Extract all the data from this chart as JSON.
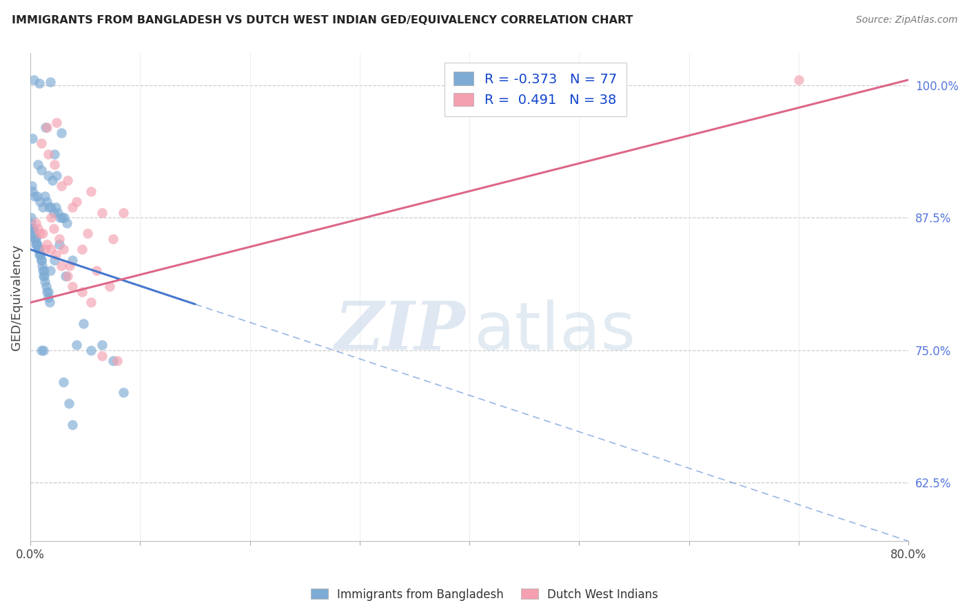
{
  "title": "IMMIGRANTS FROM BANGLADESH VS DUTCH WEST INDIAN GED/EQUIVALENCY CORRELATION CHART",
  "source": "Source: ZipAtlas.com",
  "ylabel": "GED/Equivalency",
  "ylabel_right_ticks": [
    62.5,
    75.0,
    87.5,
    100.0
  ],
  "ylabel_right_labels": [
    "62.5%",
    "75.0%",
    "87.5%",
    "100.0%"
  ],
  "xlim": [
    0.0,
    80.0
  ],
  "ylim": [
    57.0,
    103.0
  ],
  "blue_R": -0.373,
  "blue_N": 77,
  "pink_R": 0.491,
  "pink_N": 38,
  "blue_color": "#7eabd4",
  "pink_color": "#f4a0b0",
  "blue_line_color": "#4477cc",
  "pink_line_color": "#dd6688",
  "legend_label_blue": "Immigrants from Bangladesh",
  "legend_label_pink": "Dutch West Indians",
  "watermark_zip": "ZIP",
  "watermark_atlas": "atlas",
  "blue_scatter_x": [
    0.3,
    0.8,
    1.8,
    1.4,
    2.2,
    2.8,
    0.2,
    0.7,
    1.0,
    1.6,
    2.0,
    2.4,
    0.1,
    0.15,
    0.4,
    0.6,
    0.9,
    1.1,
    1.3,
    1.5,
    1.7,
    1.9,
    2.1,
    2.3,
    2.5,
    2.7,
    2.9,
    3.1,
    3.3,
    0.05,
    0.08,
    0.12,
    0.18,
    0.22,
    0.28,
    0.32,
    0.38,
    0.42,
    0.48,
    0.52,
    0.58,
    0.62,
    0.68,
    0.72,
    0.78,
    0.82,
    0.88,
    0.92,
    0.98,
    1.02,
    1.08,
    1.12,
    1.18,
    1.22,
    1.28,
    1.32,
    1.42,
    1.52,
    1.62,
    1.72,
    4.2,
    4.8,
    5.5,
    6.5,
    7.5,
    8.5,
    3.5,
    3.8,
    1.0,
    1.2,
    1.6,
    1.8,
    2.2,
    2.6,
    3.8,
    3.2,
    3.0
  ],
  "blue_scatter_y": [
    100.5,
    100.2,
    100.3,
    96.0,
    93.5,
    95.5,
    95.0,
    92.5,
    92.0,
    91.5,
    91.0,
    91.5,
    90.5,
    90.0,
    89.5,
    89.5,
    89.0,
    88.5,
    89.5,
    89.0,
    88.5,
    88.5,
    88.0,
    88.5,
    88.0,
    87.5,
    87.5,
    87.5,
    87.0,
    87.5,
    87.0,
    86.5,
    86.5,
    86.5,
    86.0,
    86.0,
    85.5,
    85.5,
    85.0,
    85.5,
    85.0,
    85.0,
    84.5,
    84.5,
    84.0,
    84.5,
    84.0,
    84.0,
    83.5,
    83.5,
    83.0,
    82.5,
    82.0,
    82.5,
    82.0,
    81.5,
    81.0,
    80.5,
    80.0,
    79.5,
    75.5,
    77.5,
    75.0,
    75.5,
    74.0,
    71.0,
    70.0,
    68.0,
    75.0,
    75.0,
    80.5,
    82.5,
    83.5,
    85.0,
    83.5,
    82.0,
    72.0
  ],
  "pink_scatter_x": [
    2.4,
    1.5,
    1.0,
    1.6,
    2.2,
    2.8,
    3.4,
    3.8,
    4.2,
    5.5,
    6.5,
    7.5,
    8.5,
    0.9,
    1.3,
    1.9,
    2.1,
    2.6,
    3.0,
    3.6,
    4.7,
    5.2,
    6.0,
    7.2,
    0.5,
    0.7,
    1.1,
    1.5,
    1.9,
    2.3,
    2.8,
    3.4,
    3.8,
    4.7,
    5.5,
    6.5,
    7.9,
    70.0
  ],
  "pink_scatter_y": [
    96.5,
    96.0,
    94.5,
    93.5,
    92.5,
    90.5,
    91.0,
    88.5,
    89.0,
    90.0,
    88.0,
    85.5,
    88.0,
    86.0,
    84.5,
    87.5,
    86.5,
    85.5,
    84.5,
    83.0,
    84.5,
    86.0,
    82.5,
    81.0,
    87.0,
    86.5,
    86.0,
    85.0,
    84.5,
    84.0,
    83.0,
    82.0,
    81.0,
    80.5,
    79.5,
    74.5,
    74.0,
    100.5
  ],
  "blue_solid_x0": 0.0,
  "blue_solid_x1": 15.0,
  "blue_dash_x1": 80.0,
  "blue_trendline_y0": 84.5,
  "blue_trendline_y_end": 57.0,
  "pink_trendline_x0": 0.0,
  "pink_trendline_x1": 80.0,
  "pink_trendline_y0": 79.5,
  "pink_trendline_y1": 100.5,
  "gridline_y": [
    62.5,
    75.0,
    87.5,
    100.0
  ],
  "xtick_positions": [
    0.0,
    10.0,
    20.0,
    30.0,
    40.0,
    50.0,
    60.0,
    70.0,
    80.0
  ],
  "xtick_labels": [
    "0.0%",
    "",
    "",
    "",
    "",
    "",
    "",
    "",
    "80.0%"
  ]
}
